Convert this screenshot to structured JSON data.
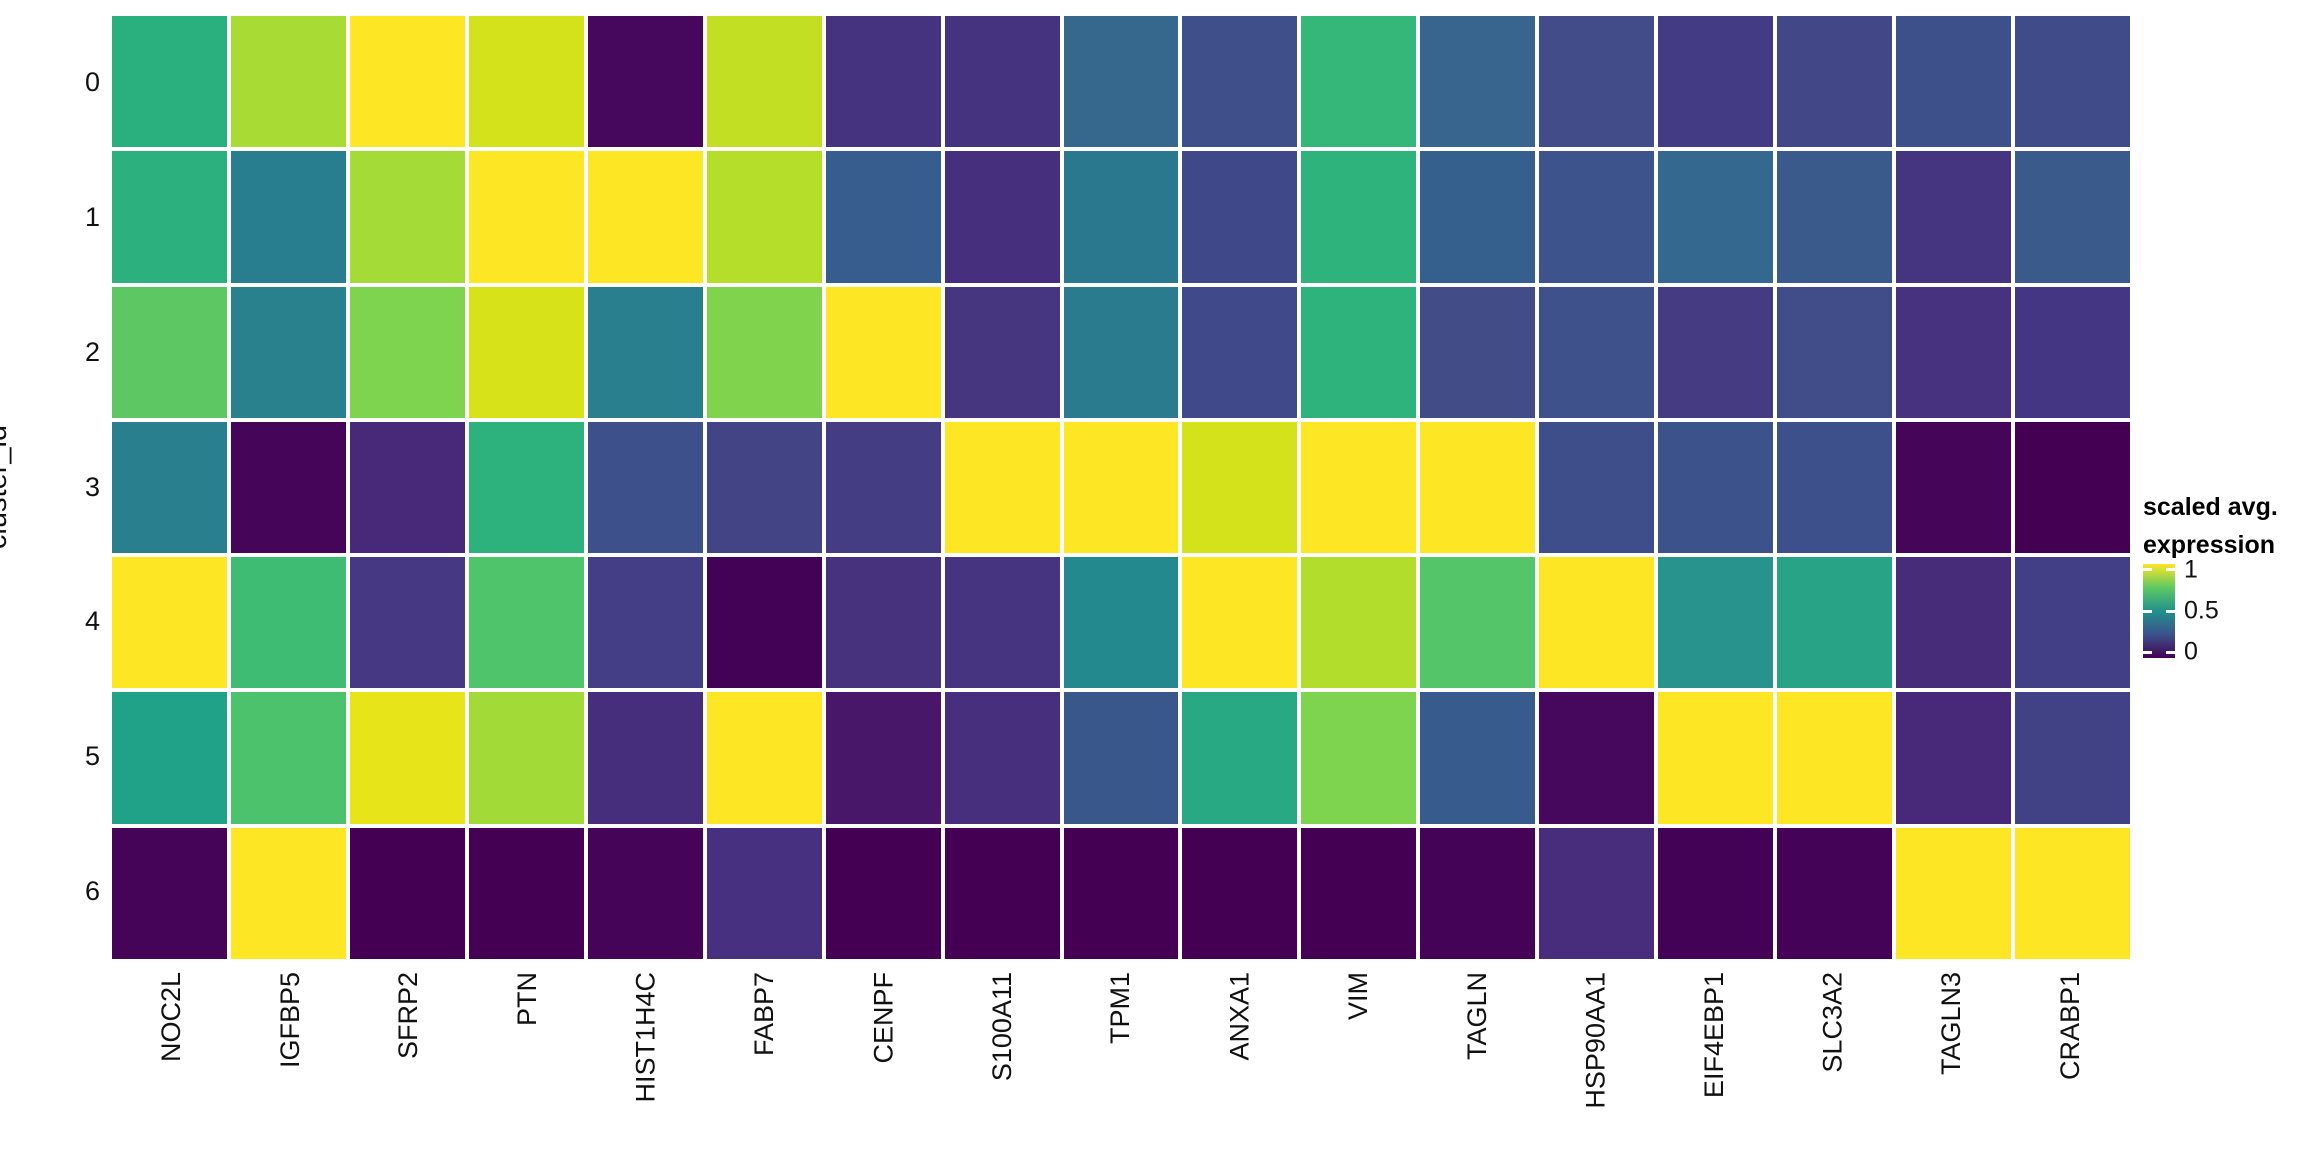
{
  "chart_data": {
    "type": "heatmap",
    "colormap": "viridis",
    "y_axis_label": "cluster_id",
    "y_categories": [
      "0",
      "1",
      "2",
      "3",
      "4",
      "5",
      "6"
    ],
    "x_categories": [
      "NOC2L",
      "IGFBP5",
      "SFRP2",
      "PTN",
      "HIST1H4C",
      "FABP7",
      "CENPF",
      "S100A11",
      "TPM1",
      "ANXA1",
      "VIM",
      "TAGLN",
      "HSP90AA1",
      "EIF4EBP1",
      "SLC3A2",
      "TAGLN3",
      "CRABP1"
    ],
    "legend": {
      "title_lines": [
        "scaled avg.",
        "expression"
      ],
      "tick_labels": [
        "1",
        "0.5",
        "0"
      ],
      "tick_values": [
        1,
        0.5,
        0
      ],
      "range": [
        0,
        1
      ],
      "gradient_stops": [
        "#440154",
        "#3b528b",
        "#21918c",
        "#5ec962",
        "#fde725"
      ]
    },
    "values": [
      [
        0.63,
        0.87,
        1.0,
        0.92,
        0.02,
        0.9,
        0.2,
        0.2,
        0.42,
        0.3,
        0.67,
        0.41,
        0.28,
        0.23,
        0.27,
        0.31,
        0.29
      ],
      [
        0.64,
        0.46,
        0.86,
        1.0,
        1.0,
        0.88,
        0.39,
        0.15,
        0.43,
        0.28,
        0.65,
        0.4,
        0.34,
        0.42,
        0.37,
        0.17,
        0.37
      ],
      [
        0.75,
        0.47,
        0.8,
        0.93,
        0.47,
        0.8,
        1.0,
        0.18,
        0.44,
        0.29,
        0.65,
        0.29,
        0.32,
        0.22,
        0.29,
        0.15,
        0.18
      ],
      [
        0.47,
        0.01,
        0.11,
        0.64,
        0.32,
        0.26,
        0.23,
        1.0,
        1.0,
        0.92,
        1.0,
        1.0,
        0.3,
        0.33,
        0.32,
        0.01,
        0.0
      ],
      [
        1.0,
        0.68,
        0.2,
        0.71,
        0.24,
        0.0,
        0.16,
        0.18,
        0.5,
        1.0,
        0.87,
        0.72,
        1.0,
        0.52,
        0.57,
        0.13,
        0.25
      ],
      [
        0.56,
        0.7,
        0.95,
        0.85,
        0.13,
        1.0,
        0.06,
        0.13,
        0.36,
        0.59,
        0.8,
        0.38,
        0.02,
        1.0,
        1.0,
        0.12,
        0.26
      ],
      [
        0.01,
        1.0,
        0.0,
        0.0,
        0.01,
        0.15,
        0.0,
        0.0,
        0.0,
        0.0,
        0.0,
        0.01,
        0.13,
        0.02,
        0.01,
        1.0,
        1.0
      ]
    ],
    "cell_colors": [
      [
        "#2ab07f",
        "#a8db34",
        "#fde725",
        "#d4e21b",
        "#46085c",
        "#c2df23",
        "#46337f",
        "#46337f",
        "#36688e",
        "#3e4f8a",
        "#35b779",
        "#38658e",
        "#414c88",
        "#433c84",
        "#424887",
        "#3e508a",
        "#3f4c89"
      ],
      [
        "#2cb17e",
        "#287d8e",
        "#a5db36",
        "#fde725",
        "#fde725",
        "#b5de2b",
        "#365d8d",
        "#46307e",
        "#2a788e",
        "#3f4889",
        "#2eb37c",
        "#355f8d",
        "#3c548b",
        "#34688e",
        "#3a5a8c",
        "#45347f",
        "#3b5a8c"
      ],
      [
        "#5dc863",
        "#2a818e",
        "#7ed34f",
        "#d8e219",
        "#2a7f8e",
        "#80d34d",
        "#fde725",
        "#463680",
        "#2a7b8e",
        "#404989",
        "#2eb37c",
        "#424d88",
        "#3e518a",
        "#443b83",
        "#414d89",
        "#46327e",
        "#453683"
      ],
      [
        "#2a7f8e",
        "#45065a",
        "#482878",
        "#2db27d",
        "#3d508b",
        "#424486",
        "#453d84",
        "#fde725",
        "#fde725",
        "#d4e21b",
        "#fde725",
        "#fde725",
        "#3e4e8a",
        "#3c528b",
        "#3d508b",
        "#45065a",
        "#440154"
      ],
      [
        "#fde725",
        "#3fbc73",
        "#463882",
        "#50c46a",
        "#433e85",
        "#440256",
        "#47327e",
        "#463480",
        "#23898e",
        "#fde725",
        "#b2dd2d",
        "#54c568",
        "#fde725",
        "#28938d",
        "#28a385",
        "#472c7a",
        "#423f87"
      ],
      [
        "#1fa287",
        "#4cc26c",
        "#e7e419",
        "#a2da37",
        "#472e7c",
        "#fde725",
        "#481769",
        "#472f7d",
        "#3a578c",
        "#29a983",
        "#7ed34f",
        "#375b8d",
        "#45085c",
        "#fde725",
        "#fde725",
        "#482979",
        "#414286"
      ],
      [
        "#450457",
        "#fde725",
        "#440154",
        "#440154",
        "#450457",
        "#473080",
        "#440154",
        "#440154",
        "#440154",
        "#440154",
        "#440154",
        "#450357",
        "#472d7b",
        "#440256",
        "#450358",
        "#fde725",
        "#fde725"
      ]
    ]
  }
}
